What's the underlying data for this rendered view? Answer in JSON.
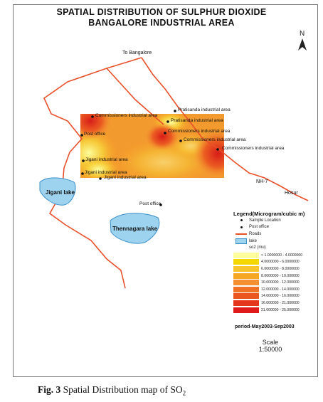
{
  "title_line1": "SPATIAL DISTRIBUTION OF SULPHUR DIOXIDE",
  "title_line2": "BANGALORE INDUSTRIAL AREA",
  "north_label": "N",
  "road_labels": {
    "to_bangalore": "To Bangalore",
    "nh7": "NH-7",
    "hosur": "Hosur"
  },
  "sample_sites": [
    "Commissioners industrial area",
    "Pratisanda industrial area",
    "Pratisanda industrial area",
    "Commissioners industrial area",
    "Commissioners industrial area",
    "Commissioners industrial area",
    "Post office",
    "Jigani industrial area",
    "Jigani industrial area",
    "Jigani industrial area",
    "Post office"
  ],
  "lakes": {
    "jigani": "Jigani lake",
    "thennagara": "Thennagara lake"
  },
  "legend": {
    "title": "Legend(Microgram/cubic m)",
    "symbols": [
      {
        "label": "Sample Location",
        "symbol": "dot"
      },
      {
        "label": "Post office",
        "symbol": "dot"
      },
      {
        "label": "Roads",
        "symbol": "line",
        "color": "#e8502a"
      },
      {
        "label": "lake",
        "symbol": "box",
        "color": "#9ed3ef"
      },
      {
        "label": "so2 (mu)",
        "symbol": "none"
      }
    ],
    "classes": [
      {
        "label": "< 1.0000000 - 4.0000000",
        "color": "#fdfd9c"
      },
      {
        "label": "4.0000000 - 6.0000000",
        "color": "#f5d800"
      },
      {
        "label": "6.0000000 - 8.0000000",
        "color": "#f7c52a"
      },
      {
        "label": "8.0000000 - 10.000000",
        "color": "#f6a723"
      },
      {
        "label": "10.000000 - 12.000000",
        "color": "#f39132"
      },
      {
        "label": "12.000000 - 14.000000",
        "color": "#ef7327"
      },
      {
        "label": "14.000000 - 16.000000",
        "color": "#ea5520"
      },
      {
        "label": "16.000000 - 21.000000",
        "color": "#e6351d"
      },
      {
        "label": "21.000000 - 25.000000",
        "color": "#e0191a"
      }
    ]
  },
  "period": "period-May2003-Sep2003",
  "scale_label": "Scale",
  "scale_value": "1:50000",
  "caption": {
    "fig": "Fig. 3",
    "text": "Spatial Distribution map of SO",
    "sub": "2"
  },
  "colors": {
    "road": "#e8502a",
    "lake_fill": "#9ed3ef",
    "lake_stroke": "#3a8fc9"
  }
}
